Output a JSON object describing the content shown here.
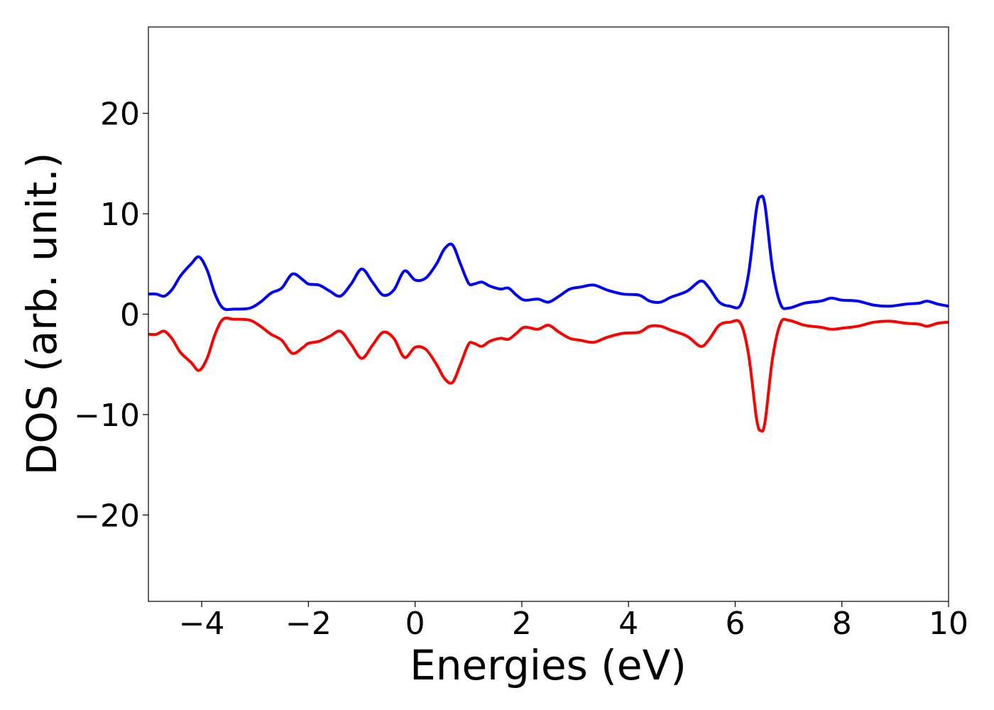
{
  "chart_data": {
    "type": "line",
    "xlabel": "Energies (eV)",
    "ylabel": "DOS (arb. unit.)",
    "xlim": [
      -5,
      10
    ],
    "ylim": [
      -28.6,
      28.6
    ],
    "grid": false,
    "legend": "none",
    "x_ticks": [
      {
        "value": -4,
        "label": "−4"
      },
      {
        "value": -2,
        "label": "−2"
      },
      {
        "value": 0,
        "label": "0"
      },
      {
        "value": 2,
        "label": "2"
      },
      {
        "value": 4,
        "label": "4"
      },
      {
        "value": 6,
        "label": "6"
      },
      {
        "value": 8,
        "label": "8"
      },
      {
        "value": 10,
        "label": "10"
      }
    ],
    "y_ticks": [
      {
        "value": 20,
        "label": "20"
      },
      {
        "value": 10,
        "label": "10"
      },
      {
        "value": 0,
        "label": "0"
      },
      {
        "value": -10,
        "label": "−10"
      },
      {
        "value": -20,
        "label": "−20"
      }
    ],
    "series": [
      {
        "color": "#0000ff",
        "points": [
          [
            -5.0,
            2.0
          ],
          [
            -4.85,
            2.0
          ],
          [
            -4.7,
            1.8
          ],
          [
            -4.55,
            2.5
          ],
          [
            -4.4,
            3.8
          ],
          [
            -4.2,
            5.0
          ],
          [
            -4.05,
            5.7
          ],
          [
            -3.9,
            4.4
          ],
          [
            -3.75,
            2.0
          ],
          [
            -3.6,
            0.6
          ],
          [
            -3.4,
            0.5
          ],
          [
            -3.1,
            0.6
          ],
          [
            -2.9,
            1.2
          ],
          [
            -2.7,
            2.1
          ],
          [
            -2.5,
            2.6
          ],
          [
            -2.3,
            4.0
          ],
          [
            -2.1,
            3.4
          ],
          [
            -2.0,
            3.0
          ],
          [
            -1.8,
            2.9
          ],
          [
            -1.6,
            2.3
          ],
          [
            -1.4,
            1.8
          ],
          [
            -1.2,
            3.0
          ],
          [
            -1.0,
            4.5
          ],
          [
            -0.8,
            3.2
          ],
          [
            -0.6,
            1.9
          ],
          [
            -0.4,
            2.4
          ],
          [
            -0.2,
            4.3
          ],
          [
            0.0,
            3.4
          ],
          [
            0.2,
            3.6
          ],
          [
            0.4,
            5.0
          ],
          [
            0.55,
            6.5
          ],
          [
            0.7,
            6.9
          ],
          [
            0.85,
            5.0
          ],
          [
            1.0,
            3.1
          ],
          [
            1.1,
            3.0
          ],
          [
            1.25,
            3.2
          ],
          [
            1.4,
            2.8
          ],
          [
            1.6,
            2.5
          ],
          [
            1.75,
            2.6
          ],
          [
            1.9,
            1.9
          ],
          [
            2.05,
            1.4
          ],
          [
            2.3,
            1.5
          ],
          [
            2.5,
            1.2
          ],
          [
            2.7,
            1.8
          ],
          [
            2.9,
            2.5
          ],
          [
            3.1,
            2.7
          ],
          [
            3.35,
            2.9
          ],
          [
            3.6,
            2.4
          ],
          [
            3.9,
            2.0
          ],
          [
            4.2,
            1.9
          ],
          [
            4.4,
            1.3
          ],
          [
            4.6,
            1.2
          ],
          [
            4.8,
            1.7
          ],
          [
            5.1,
            2.3
          ],
          [
            5.35,
            3.3
          ],
          [
            5.5,
            2.7
          ],
          [
            5.7,
            1.2
          ],
          [
            5.9,
            0.8
          ],
          [
            6.1,
            0.9
          ],
          [
            6.25,
            4.0
          ],
          [
            6.4,
            10.5
          ],
          [
            6.48,
            11.7
          ],
          [
            6.56,
            10.8
          ],
          [
            6.7,
            4.5
          ],
          [
            6.85,
            1.0
          ],
          [
            7.0,
            0.6
          ],
          [
            7.3,
            1.1
          ],
          [
            7.6,
            1.3
          ],
          [
            7.8,
            1.6
          ],
          [
            8.0,
            1.4
          ],
          [
            8.3,
            1.3
          ],
          [
            8.6,
            0.9
          ],
          [
            8.9,
            0.8
          ],
          [
            9.2,
            1.0
          ],
          [
            9.45,
            1.1
          ],
          [
            9.6,
            1.3
          ],
          [
            9.8,
            1.0
          ],
          [
            10.0,
            0.8
          ]
        ]
      },
      {
        "color": "#ff0000",
        "points": [
          [
            -5.0,
            -2.0
          ],
          [
            -4.85,
            -2.0
          ],
          [
            -4.7,
            -1.7
          ],
          [
            -4.55,
            -2.5
          ],
          [
            -4.4,
            -3.8
          ],
          [
            -4.2,
            -4.8
          ],
          [
            -4.05,
            -5.6
          ],
          [
            -3.9,
            -4.4
          ],
          [
            -3.75,
            -2.0
          ],
          [
            -3.6,
            -0.5
          ],
          [
            -3.4,
            -0.5
          ],
          [
            -3.1,
            -0.6
          ],
          [
            -2.9,
            -1.2
          ],
          [
            -2.7,
            -2.0
          ],
          [
            -2.5,
            -2.6
          ],
          [
            -2.3,
            -3.9
          ],
          [
            -2.1,
            -3.3
          ],
          [
            -2.0,
            -2.9
          ],
          [
            -1.8,
            -2.7
          ],
          [
            -1.6,
            -2.2
          ],
          [
            -1.4,
            -1.7
          ],
          [
            -1.2,
            -3.0
          ],
          [
            -1.0,
            -4.4
          ],
          [
            -0.8,
            -3.1
          ],
          [
            -0.6,
            -1.8
          ],
          [
            -0.4,
            -2.4
          ],
          [
            -0.2,
            -4.3
          ],
          [
            0.0,
            -3.3
          ],
          [
            0.2,
            -3.5
          ],
          [
            0.4,
            -5.0
          ],
          [
            0.55,
            -6.4
          ],
          [
            0.7,
            -6.8
          ],
          [
            0.85,
            -5.0
          ],
          [
            1.0,
            -3.0
          ],
          [
            1.1,
            -2.9
          ],
          [
            1.25,
            -3.2
          ],
          [
            1.4,
            -2.7
          ],
          [
            1.6,
            -2.4
          ],
          [
            1.75,
            -2.5
          ],
          [
            1.9,
            -1.9
          ],
          [
            2.05,
            -1.3
          ],
          [
            2.3,
            -1.5
          ],
          [
            2.5,
            -1.1
          ],
          [
            2.7,
            -1.8
          ],
          [
            2.9,
            -2.4
          ],
          [
            3.1,
            -2.6
          ],
          [
            3.35,
            -2.8
          ],
          [
            3.6,
            -2.3
          ],
          [
            3.9,
            -1.9
          ],
          [
            4.2,
            -1.8
          ],
          [
            4.4,
            -1.2
          ],
          [
            4.6,
            -1.2
          ],
          [
            4.8,
            -1.6
          ],
          [
            5.1,
            -2.2
          ],
          [
            5.35,
            -3.2
          ],
          [
            5.5,
            -2.6
          ],
          [
            5.7,
            -1.1
          ],
          [
            5.9,
            -0.8
          ],
          [
            6.1,
            -0.9
          ],
          [
            6.25,
            -4.0
          ],
          [
            6.4,
            -10.4
          ],
          [
            6.48,
            -11.6
          ],
          [
            6.56,
            -10.7
          ],
          [
            6.7,
            -4.4
          ],
          [
            6.85,
            -0.9
          ],
          [
            7.0,
            -0.6
          ],
          [
            7.3,
            -1.1
          ],
          [
            7.6,
            -1.3
          ],
          [
            7.8,
            -1.5
          ],
          [
            8.0,
            -1.4
          ],
          [
            8.3,
            -1.2
          ],
          [
            8.6,
            -0.8
          ],
          [
            8.9,
            -0.7
          ],
          [
            9.2,
            -0.9
          ],
          [
            9.45,
            -1.0
          ],
          [
            9.6,
            -1.2
          ],
          [
            9.8,
            -0.9
          ],
          [
            10.0,
            -0.8
          ]
        ]
      }
    ]
  }
}
